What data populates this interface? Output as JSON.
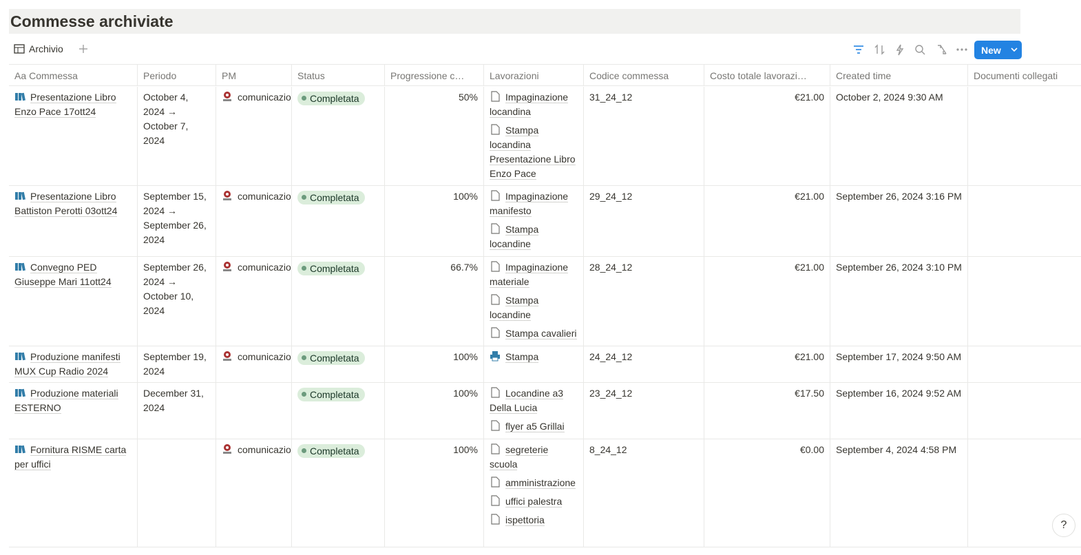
{
  "header": {
    "title": "Commesse archiviate"
  },
  "toolbar": {
    "view": "Archivio",
    "new_button": "New"
  },
  "table": {
    "title_column_icon": "Aa",
    "columns": [
      "Commessa",
      "Periodo",
      "PM",
      "Status",
      "Progressione c…",
      "Lavorazioni",
      "Codice commessa",
      "Costo totale lavorazi…",
      "Created time",
      "Documenti collegati"
    ],
    "rows": [
      {
        "commessa": "Presentazione Libro Enzo Pace 17ott24",
        "periodo": "October 4, 2024 → October 7, 2024",
        "pm": "comunicazio",
        "status": "Completata",
        "progressione": "50%",
        "lavorazioni": [
          "Impaginazione locandina",
          "Stampa locandina Presentazione Libro Enzo Pace"
        ],
        "codice": "31_24_12",
        "costo": "€21.00",
        "created": "October 2, 2024 9:30 AM"
      },
      {
        "commessa": "Presentazione Libro Battiston Perotti 03ott24",
        "periodo": "September 15, 2024 → September 26, 2024",
        "pm": "comunicazio",
        "status": "Completata",
        "progressione": "100%",
        "lavorazioni": [
          "Impaginazione manifesto",
          "Stampa locandine"
        ],
        "codice": "29_24_12",
        "costo": "€21.00",
        "created": "September 26, 2024 3:16 PM"
      },
      {
        "commessa": "Convegno PED Giuseppe Mari 11ott24",
        "periodo": "September 26, 2024 → October 10, 2024",
        "pm": "comunicazio",
        "status": "Completata",
        "progressione": "66.7%",
        "lavorazioni": [
          "Impaginazione materiale",
          "Stampa locandine",
          "Stampa cavalieri"
        ],
        "codice": "28_24_12",
        "costo": "€21.00",
        "created": "September 26, 2024 3:10 PM"
      },
      {
        "commessa": "Produzione manifesti MUX Cup Radio 2024",
        "periodo": "September 19, 2024",
        "pm": "comunicazio",
        "status": "Completata",
        "progressione": "100%",
        "lavorazioni": [
          "Stampa"
        ],
        "codice": "24_24_12",
        "costo": "€21.00",
        "created": "September 17, 2024 9:50 AM"
      },
      {
        "commessa": "Produzione materiali ESTERNO",
        "periodo": "December 31, 2024",
        "status": "Completata",
        "progressione": "100%",
        "lavorazioni": [
          "Locandine a3 Della Lucia",
          "flyer a5 Grillai"
        ],
        "codice": "23_24_12",
        "costo": "€17.50",
        "created": "September 16, 2024 9:52 AM"
      },
      {
        "commessa": "Fornitura RISME carta per uffici",
        "pm": "comunicazio",
        "status": "Completata",
        "progressione": "100%",
        "lavorazioni": [
          "segreterie scuola",
          "amministrazione",
          "uffici palestra",
          "ispettoria"
        ],
        "codice": "8_24_12",
        "costo": "€0.00",
        "created": "September 4, 2024 4:58 PM"
      }
    ]
  },
  "help": "?"
}
